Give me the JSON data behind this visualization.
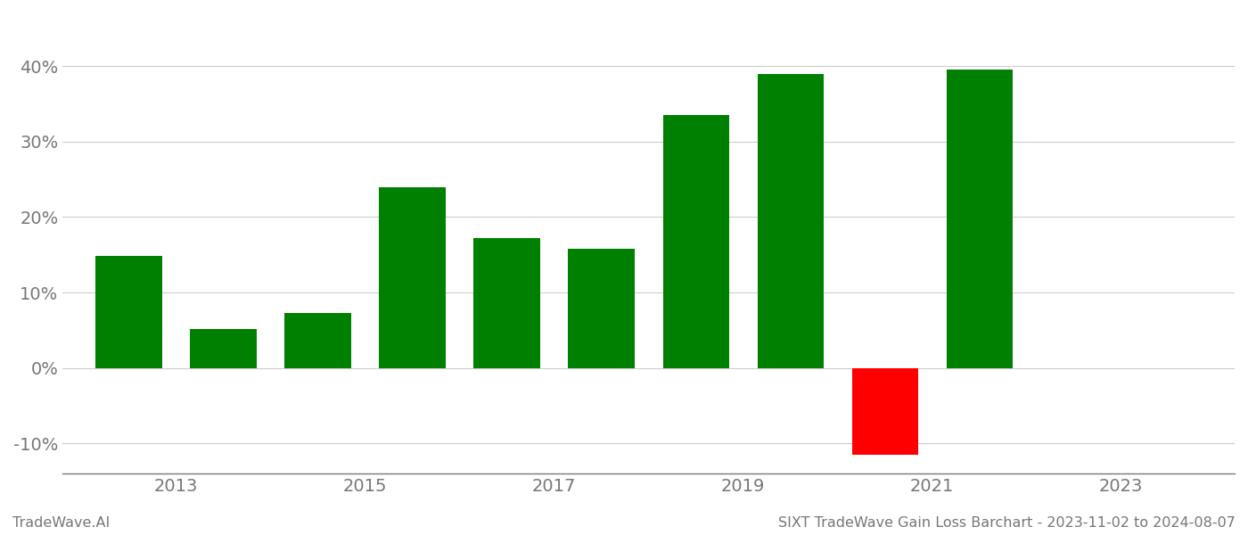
{
  "years": [
    2012.5,
    2013.5,
    2014.5,
    2015.5,
    2016.5,
    2017.5,
    2018.5,
    2019.5,
    2020.5,
    2021.5
  ],
  "values": [
    14.8,
    5.2,
    7.3,
    24.0,
    17.2,
    15.8,
    33.5,
    39.0,
    -11.5,
    39.5
  ],
  "colors": [
    "#008000",
    "#008000",
    "#008000",
    "#008000",
    "#008000",
    "#008000",
    "#008000",
    "#008000",
    "#ff0000",
    "#008000"
  ],
  "bar_width": 0.7,
  "ylim": [
    -14,
    47
  ],
  "yticks": [
    -10,
    0,
    10,
    20,
    30,
    40
  ],
  "xticks": [
    2013,
    2015,
    2017,
    2019,
    2021,
    2023
  ],
  "xlim": [
    2011.8,
    2024.2
  ],
  "footer_left": "TradeWave.AI",
  "footer_right": "SIXT TradeWave Gain Loss Barchart - 2023-11-02 to 2024-08-07",
  "grid_color": "#cccccc",
  "background_color": "#ffffff",
  "axis_color": "#777777",
  "tick_label_color": "#777777",
  "tick_fontsize": 14,
  "footer_fontsize": 11.5
}
